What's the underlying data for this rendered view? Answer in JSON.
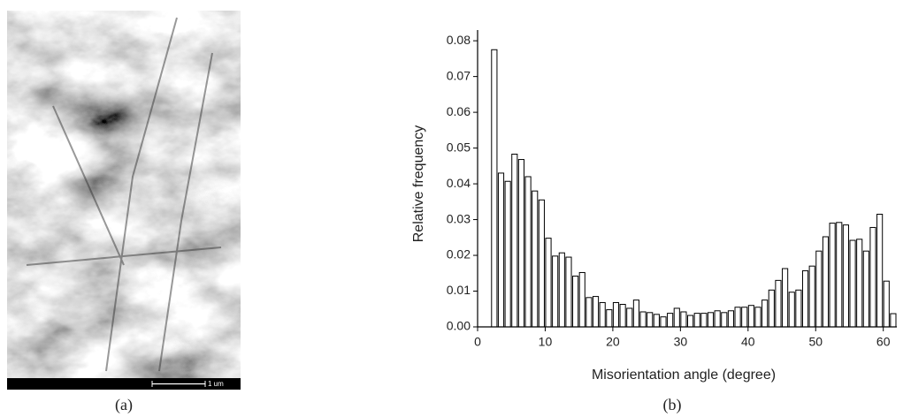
{
  "panels": [
    {
      "label": "(a)",
      "scale_bar": "1 um"
    },
    {
      "label": "(b)"
    }
  ],
  "chart_data": {
    "type": "histogram",
    "xlabel": "Misorientation angle (degree)",
    "ylabel": "Relative frequency",
    "bins": [
      2,
      3,
      4,
      5,
      6,
      7,
      8,
      9,
      10,
      11,
      12,
      13,
      14,
      15,
      16,
      17,
      18,
      19,
      20,
      21,
      22,
      23,
      24,
      25,
      26,
      27,
      28,
      29,
      30,
      31,
      32,
      33,
      34,
      35,
      36,
      37,
      38,
      39,
      40,
      41,
      42,
      43,
      44,
      45,
      46,
      47,
      48,
      49,
      50,
      51,
      52,
      53,
      54,
      55,
      56,
      57,
      58,
      59,
      60,
      61,
      62
    ],
    "values": [
      0.0775,
      0.043,
      0.0407,
      0.0483,
      0.0468,
      0.042,
      0.038,
      0.0355,
      0.0248,
      0.0198,
      0.0207,
      0.0195,
      0.0142,
      0.0152,
      0.0082,
      0.0085,
      0.0068,
      0.0048,
      0.0068,
      0.0063,
      0.0052,
      0.0075,
      0.0042,
      0.004,
      0.0035,
      0.0028,
      0.0038,
      0.0052,
      0.0042,
      0.0032,
      0.0038,
      0.0038,
      0.004,
      0.0045,
      0.004,
      0.0045,
      0.0055,
      0.0055,
      0.006,
      0.0055,
      0.0075,
      0.0103,
      0.013,
      0.0163,
      0.0097,
      0.0103,
      0.0157,
      0.017,
      0.0212,
      0.0252,
      0.029,
      0.0292,
      0.0285,
      0.0242,
      0.0245,
      0.0212,
      0.0278,
      0.0315,
      0.0128,
      0.0037
    ],
    "color": "#ffffff",
    "xlim": [
      0,
      62
    ],
    "ylim": [
      0,
      0.083
    ],
    "xticks": [
      0,
      10,
      20,
      30,
      40,
      50,
      60
    ],
    "yticks": [
      {
        "value": 0,
        "label": "0.00"
      },
      0.01,
      0.02,
      0.03,
      0.04,
      0.05,
      0.06,
      0.07,
      0.08
    ]
  }
}
